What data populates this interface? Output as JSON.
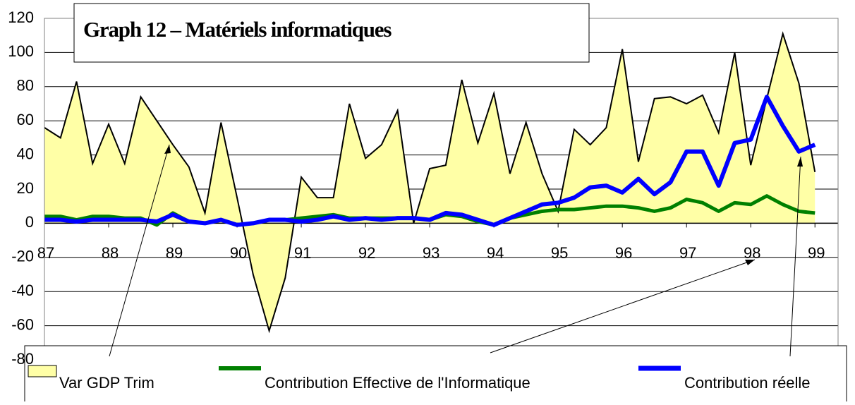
{
  "chart_data": {
    "type": "area-line",
    "title": "Graph 12 – Matériels informatiques",
    "x": [
      87,
      87.25,
      87.5,
      87.75,
      88,
      88.25,
      88.5,
      88.75,
      89,
      89.25,
      89.5,
      89.75,
      90,
      90.25,
      90.5,
      90.75,
      91,
      91.25,
      91.5,
      91.75,
      92,
      92.25,
      92.5,
      92.75,
      93,
      93.25,
      93.5,
      93.75,
      94,
      94.25,
      94.5,
      94.75,
      95,
      95.25,
      95.5,
      95.75,
      96,
      96.25,
      96.5,
      96.75,
      97,
      97.25,
      97.5,
      97.75,
      98,
      98.25,
      98.5,
      98.75,
      99
    ],
    "series": [
      {
        "name": "Var GDP Trim",
        "kind": "area",
        "color": "#ffffa6",
        "values": [
          56,
          50,
          83,
          35,
          58,
          35,
          74,
          60,
          46,
          33,
          6,
          59,
          15,
          -30,
          -63,
          -32,
          27,
          15,
          15,
          70,
          38,
          46,
          66,
          0,
          32,
          34,
          84,
          47,
          76,
          29,
          59,
          29,
          7,
          55,
          46,
          56,
          102,
          36,
          73,
          74,
          70,
          75,
          53,
          100,
          34,
          73,
          111,
          82,
          30
        ]
      },
      {
        "name": "Contribution Effective de l'Informatique",
        "kind": "line",
        "color": "#008000",
        "values": [
          4,
          4,
          2,
          4,
          4,
          3,
          3,
          -1,
          6,
          1,
          0,
          2,
          -1,
          0,
          2,
          2,
          3,
          4,
          5,
          3,
          3,
          3,
          3,
          3,
          2,
          5,
          4,
          1,
          -1,
          3,
          5,
          7,
          8,
          8,
          9,
          10,
          10,
          9,
          7,
          9,
          14,
          12,
          7,
          12,
          11,
          16,
          11,
          7,
          6
        ]
      },
      {
        "name": "Contribution réelle",
        "kind": "line",
        "color": "#0000ff",
        "values": [
          2,
          2,
          1,
          2,
          2,
          2,
          2,
          1,
          5,
          1,
          0,
          2,
          -1,
          0,
          2,
          2,
          1,
          2,
          4,
          2,
          3,
          2,
          3,
          3,
          2,
          6,
          5,
          2,
          -1,
          3,
          7,
          11,
          12,
          15,
          21,
          22,
          18,
          26,
          17,
          24,
          42,
          42,
          22,
          47,
          49,
          74,
          57,
          42,
          46
        ]
      }
    ],
    "xlim": [
      87,
      99.36
    ],
    "xticks": [
      87,
      88,
      89,
      90,
      91,
      92,
      93,
      94,
      95,
      96,
      97,
      98,
      99
    ],
    "ylim": [
      -80,
      120
    ],
    "yticks": [
      -80,
      -60,
      -40,
      -20,
      0,
      20,
      40,
      60,
      80,
      100,
      120
    ],
    "grid": true
  }
}
